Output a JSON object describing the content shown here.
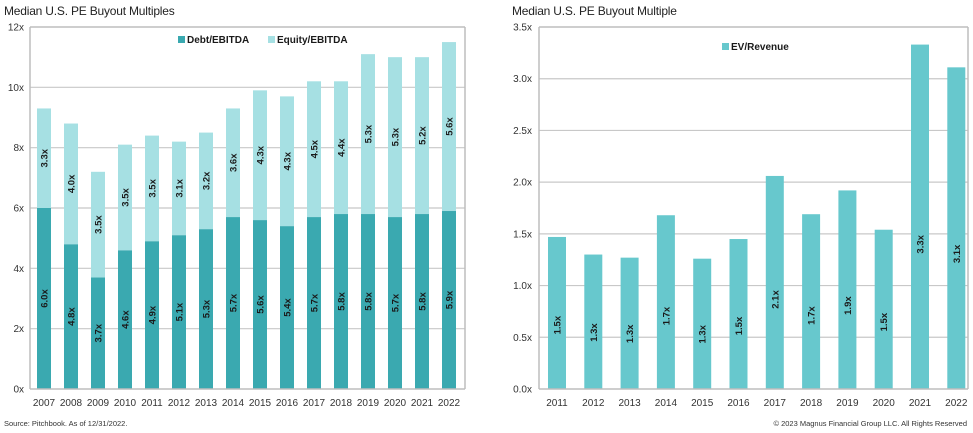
{
  "chart_data": [
    {
      "type": "bar",
      "stacked": true,
      "title": "Median U.S. PE Buyout Multiples",
      "xlabel": "",
      "ylabel": "",
      "categories": [
        "2007",
        "2008",
        "2009",
        "2010",
        "2011",
        "2012",
        "2013",
        "2014",
        "2015",
        "2016",
        "2017",
        "2018",
        "2019",
        "2020",
        "2021",
        "2022"
      ],
      "series": [
        {
          "name": "Debt/EBITDA",
          "color": "#3aa9b0",
          "values": [
            6.0,
            4.8,
            3.7,
            4.6,
            4.9,
            5.1,
            5.3,
            5.7,
            5.6,
            5.4,
            5.7,
            5.8,
            5.8,
            5.7,
            5.8,
            5.9
          ],
          "labels": [
            "6.0x",
            "4.8x",
            "3.7x",
            "4.6x",
            "4.9x",
            "5.1x",
            "5.3x",
            "5.7x",
            "5.6x",
            "5.4x",
            "5.7x",
            "5.8x",
            "5.8x",
            "5.7x",
            "5.8x",
            "5.9x"
          ]
        },
        {
          "name": "Equity/EBITDA",
          "color": "#a6e0e3",
          "values": [
            3.3,
            4.0,
            3.5,
            3.5,
            3.5,
            3.1,
            3.2,
            3.6,
            4.3,
            4.3,
            4.5,
            4.4,
            5.3,
            5.3,
            5.2,
            5.6
          ],
          "labels": [
            "3.3x",
            "4.0x",
            "3.5x",
            "3.5x",
            "3.5x",
            "3.1x",
            "3.2x",
            "3.6x",
            "4.3x",
            "4.3x",
            "4.5x",
            "4.4x",
            "5.3x",
            "5.3x",
            "5.2x",
            "5.6x"
          ]
        }
      ],
      "ylim": [
        0,
        12
      ],
      "yticks": [
        0,
        2,
        4,
        6,
        8,
        10,
        12
      ],
      "ytick_labels": [
        "0x",
        "2x",
        "4x",
        "6x",
        "8x",
        "10x",
        "12x"
      ],
      "grid": true,
      "legend_position": "top-center"
    },
    {
      "type": "bar",
      "title": "Median U.S. PE Buyout Multiple",
      "xlabel": "",
      "ylabel": "",
      "categories": [
        "2011",
        "2012",
        "2013",
        "2014",
        "2015",
        "2016",
        "2017",
        "2018",
        "2019",
        "2020",
        "2021",
        "2022"
      ],
      "series": [
        {
          "name": "EV/Revenue",
          "color": "#67c8cd",
          "values": [
            1.47,
            1.3,
            1.27,
            1.68,
            1.26,
            1.45,
            2.06,
            1.69,
            1.92,
            1.54,
            3.33,
            3.11
          ],
          "labels": [
            "1.5x",
            "1.3x",
            "1.3x",
            "1.7x",
            "1.3x",
            "1.5x",
            "2.1x",
            "1.7x",
            "1.9x",
            "1.5x",
            "3.3x",
            "3.1x"
          ]
        }
      ],
      "ylim": [
        0,
        3.5
      ],
      "yticks": [
        0,
        0.5,
        1.0,
        1.5,
        2.0,
        2.5,
        3.0,
        3.5
      ],
      "ytick_labels": [
        "0.0x",
        "0.5x",
        "1.0x",
        "1.5x",
        "2.0x",
        "2.5x",
        "3.0x",
        "3.5x"
      ],
      "grid": true,
      "legend_position": "top-center"
    }
  ],
  "footer": {
    "source": "Source: Pitchbook. As of 12/31/2022.",
    "copyright": "© 2023 Magnus Financial Group LLC. All Rights Reserved"
  },
  "colors": {
    "gridline": "#c8c8c8",
    "axis": "#bdbdbd"
  }
}
